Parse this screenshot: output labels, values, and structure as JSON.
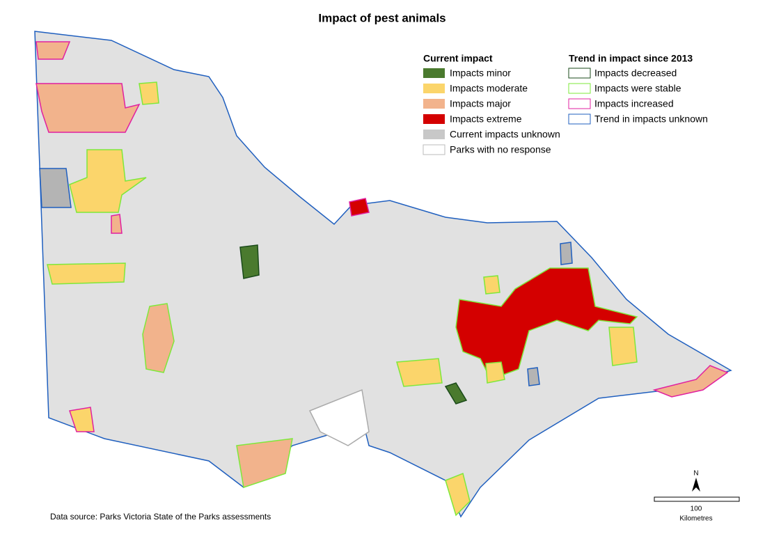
{
  "title": "Impact of pest animals",
  "legend": {
    "current_impact": {
      "title": "Current impact",
      "items": [
        "Impacts minor",
        "Impacts moderate",
        "Impacts major",
        "Impacts extreme",
        "Current impacts unknown",
        "Parks with no response"
      ]
    },
    "trend": {
      "title": "Trend in impact since 2013",
      "items": [
        "Impacts decreased",
        "Impacts were stable",
        "Impacts increased",
        "Trend in impacts unknown"
      ]
    }
  },
  "north_arrow": "N",
  "scale_bar": {
    "label": "100",
    "unit": "Kilometres"
  },
  "source": "Data source: Parks Victoria State of the Parks assessments"
}
